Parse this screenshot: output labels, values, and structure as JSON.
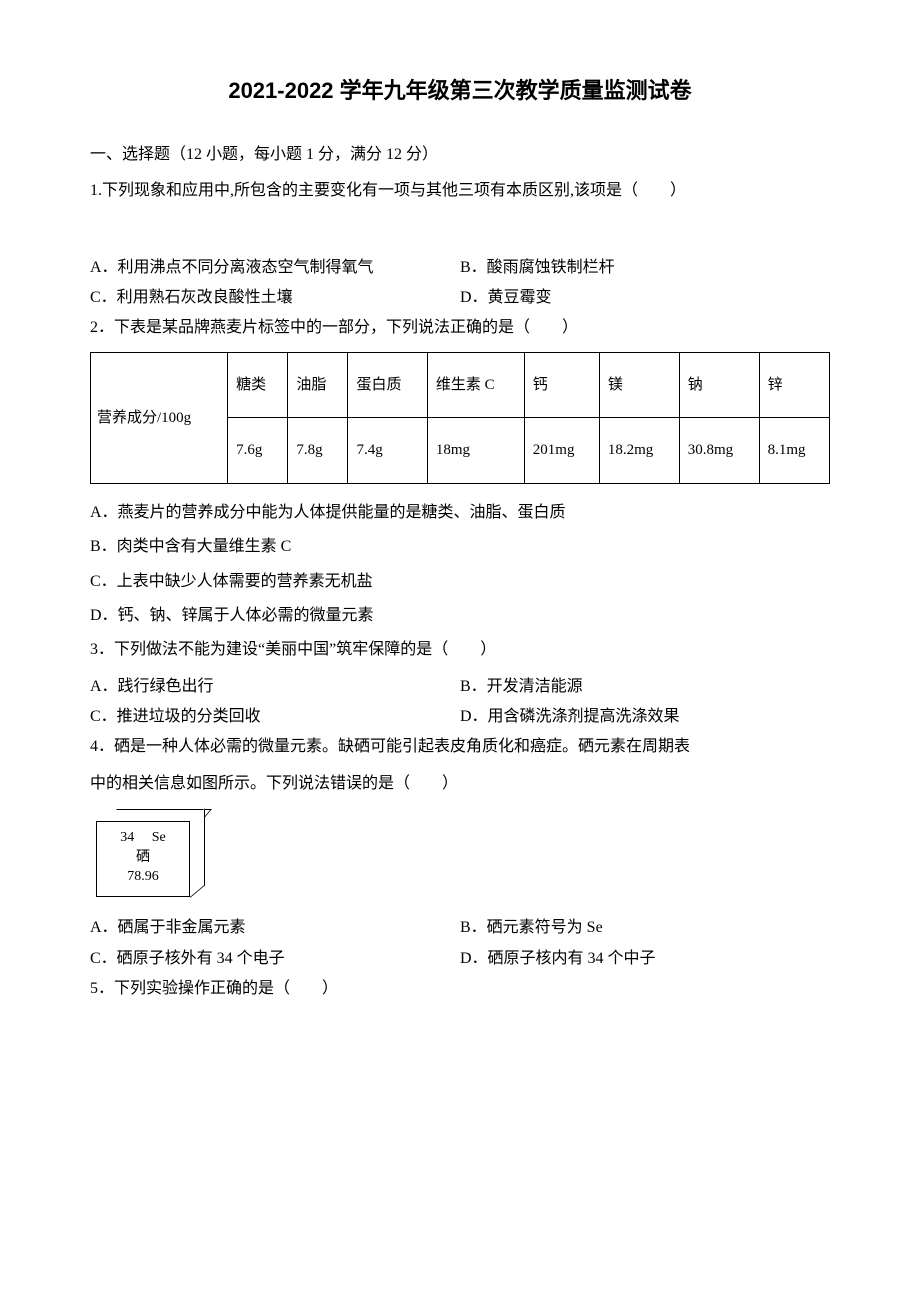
{
  "title": "2021-2022 学年九年级第三次教学质量监测试卷",
  "section1": {
    "header": "一、选择题（12 小题，每小题 1 分，满分 12 分）",
    "q1": {
      "stem": "1.下列现象和应用中,所包含的主要变化有一项与其他三项有本质区别,该项是（　　）",
      "A": "A．利用沸点不同分离液态空气制得氧气",
      "B": "B．酸雨腐蚀铁制栏杆",
      "C": "C．利用熟石灰改良酸性土壤",
      "D": "D．黄豆霉变"
    },
    "q2": {
      "stem": "2．下表是某品牌燕麦片标签中的一部分，下列说法正确的是（　　）",
      "table": {
        "rowhead": "营养成分/100g",
        "headers": [
          "糖类",
          "油脂",
          "蛋白质",
          "维生素 C",
          "钙",
          "镁",
          "钠",
          "锌"
        ],
        "values": [
          "7.6g",
          "7.8g",
          "7.4g",
          "18mg",
          "201mg",
          "18.2mg",
          "30.8mg",
          "8.1mg"
        ]
      },
      "A": "A．燕麦片的营养成分中能为人体提供能量的是糖类、油脂、蛋白质",
      "B": "B．肉类中含有大量维生素 C",
      "C": "C．上表中缺少人体需要的营养素无机盐",
      "D": "D．钙、钠、锌属于人体必需的微量元素"
    },
    "q3": {
      "stem": "3．下列做法不能为建设“美丽中国”筑牢保障的是（　　）",
      "A": "A．践行绿色出行",
      "B": "B．开发清洁能源",
      "C": "C．推进垃圾的分类回收",
      "D": "D．用含磷洗涤剂提高洗涤效果"
    },
    "q4": {
      "stem1": "4．硒是一种人体必需的微量元素。缺硒可能引起表皮角质化和癌症。硒元素在周期表",
      "stem2": "中的相关信息如图所示。下列说法错误的是（　　）",
      "element": {
        "num": "34",
        "sym": "Se",
        "name": "硒",
        "mass": "78.96"
      },
      "A": "A．硒属于非金属元素",
      "B": "B．硒元素符号为 Se",
      "C": "C．硒原子核外有 34 个电子",
      "D": "D．硒原子核内有 34 个中子"
    },
    "q5": {
      "stem": "5．下列实验操作正确的是（　　）"
    }
  }
}
